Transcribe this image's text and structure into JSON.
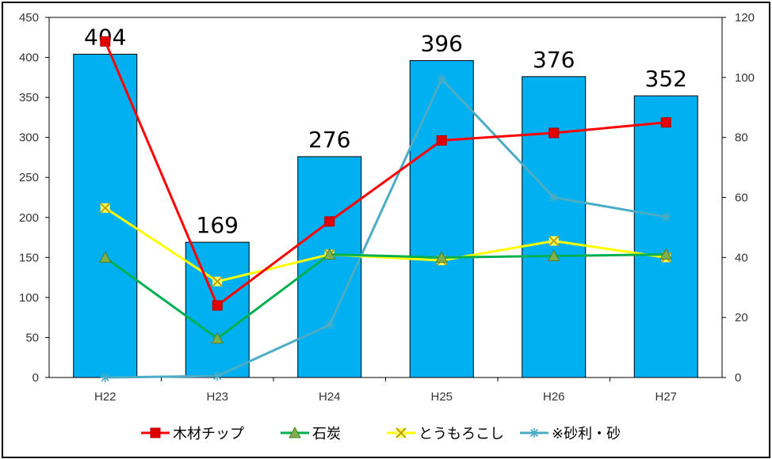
{
  "chart_data": {
    "type": "bar+line",
    "categories": [
      "H22",
      "H23",
      "H24",
      "H25",
      "H26",
      "H27"
    ],
    "bars": {
      "values": [
        404,
        169,
        276,
        396,
        376,
        352
      ],
      "axis": "left",
      "color": "#00b0f0",
      "data_labels": [
        "404",
        "169",
        "276",
        "396",
        "376",
        "352"
      ]
    },
    "lines": [
      {
        "name": "木材チップ",
        "values": [
          112,
          24,
          52,
          79,
          81.5,
          85
        ],
        "axis": "right",
        "color": "#ff0000",
        "marker": "square"
      },
      {
        "name": "石炭",
        "values": [
          40,
          13,
          41,
          40,
          40.5,
          41
        ],
        "axis": "right",
        "color": "#00b050",
        "marker": "triangle"
      },
      {
        "name": "とうもろこし",
        "values": [
          56.5,
          32,
          41,
          39,
          45.5,
          40
        ],
        "axis": "right",
        "color": "#ffff00",
        "marker": "x"
      },
      {
        "name": "※砂利・砂",
        "values": [
          0,
          0.5,
          17.5,
          99.5,
          60,
          53.5
        ],
        "axis": "right",
        "color": "#4bacc6",
        "marker": "asterisk"
      }
    ],
    "left_axis": {
      "ylim": [
        0,
        450
      ],
      "ticks": [
        "0",
        "50",
        "100",
        "150",
        "200",
        "250",
        "300",
        "350",
        "400",
        "450"
      ]
    },
    "right_axis": {
      "ylim": [
        0,
        120
      ],
      "ticks": [
        "0",
        "20",
        "40",
        "60",
        "80",
        "100",
        "120"
      ]
    },
    "legend_position": "bottom",
    "grid": false
  }
}
